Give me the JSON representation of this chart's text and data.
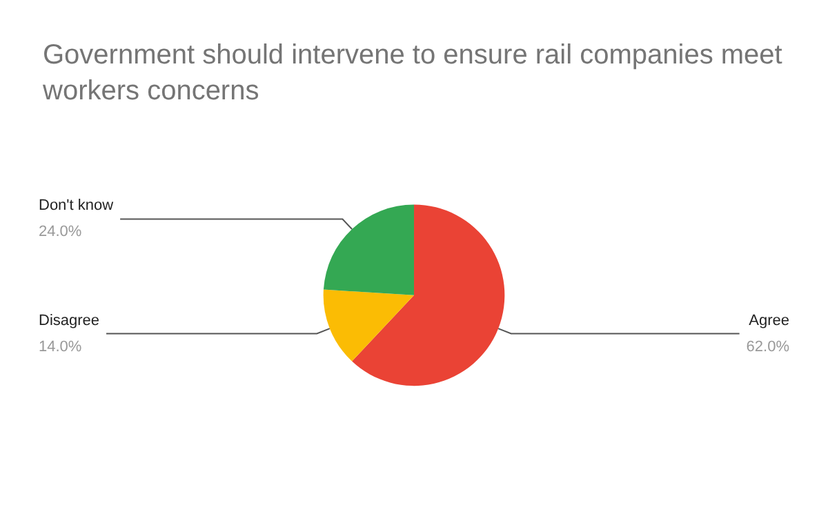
{
  "chart_data": {
    "type": "pie",
    "title": "Government should intervene to ensure rail companies meet workers concerns",
    "categories": [
      "Agree",
      "Disagree",
      "Don't know"
    ],
    "values": [
      62,
      14,
      24
    ],
    "colors": [
      "#ea4335",
      "#fbbc04",
      "#34a853"
    ],
    "value_labels": [
      "62.0%",
      "14.0%",
      "24.0%"
    ],
    "legend": false
  }
}
